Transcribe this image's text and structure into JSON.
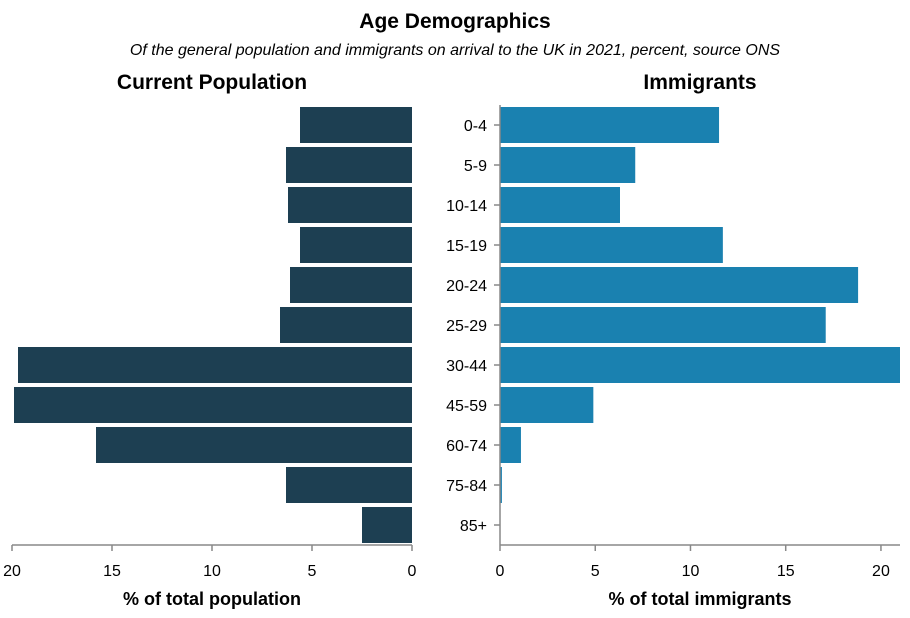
{
  "chart_data": {
    "type": "bar",
    "title": "Age Demographics",
    "subtitle": "Of the general population and immigrants on arrival to the UK in 2021, percent, source ONS",
    "categories": [
      "0-4",
      "5-9",
      "10-14",
      "15-19",
      "20-24",
      "25-29",
      "30-44",
      "45-59",
      "60-74",
      "75-84",
      "85+"
    ],
    "series": [
      {
        "name": "Current Population",
        "values": [
          5.6,
          6.3,
          6.2,
          5.6,
          6.1,
          6.6,
          19.7,
          19.9,
          15.8,
          6.3,
          2.5
        ],
        "xlabel": "% of total population",
        "xlim": [
          0,
          20
        ],
        "ticks": [
          20,
          15,
          10,
          5,
          0
        ],
        "color": "#1d3f52"
      },
      {
        "name": "Immigrants",
        "values": [
          11.5,
          7.1,
          6.3,
          11.7,
          18.8,
          17.1,
          21.0,
          4.9,
          1.1,
          0.1,
          0.0
        ],
        "xlabel": "% of total immigrants",
        "xlim": [
          0,
          21
        ],
        "ticks": [
          0,
          5,
          10,
          15,
          20
        ],
        "color": "#1a81b0"
      }
    ],
    "grid": false,
    "legend": "none"
  }
}
